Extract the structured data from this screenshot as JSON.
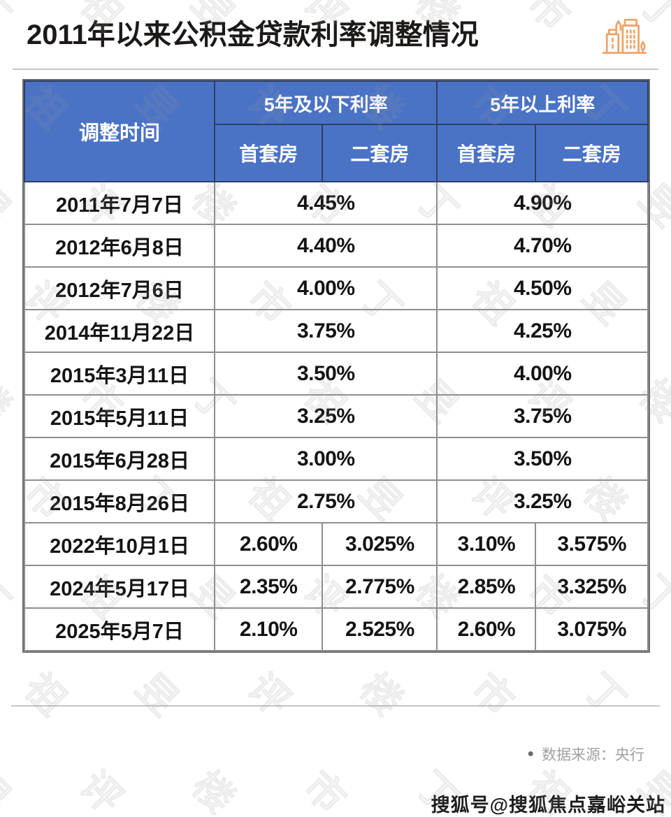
{
  "page": {
    "title": "2011年以来公积金贷款利率调整情况",
    "source_bullet": "●",
    "bottom_watermark": "搜狐号@搜狐焦点嘉峪关站",
    "bg_watermark_chars": [
      "丁",
      "祖",
      "昱",
      "评",
      "楼",
      "市"
    ]
  },
  "colors": {
    "header_blue": "#4a73c6",
    "header_border_navy": "#2e3f66",
    "body_border_gray": "#8f8f8f",
    "accent_orange": "#f0a168",
    "divider_gray": "#c6c6c6",
    "source_text_gray": "#a2a2a2"
  },
  "icons": {
    "building": "building-icon"
  },
  "chart_data": {
    "type": "table",
    "title": "2011年以来公积金贷款利率调整情况",
    "corner_header": "调整时间",
    "column_groups": [
      {
        "label": "5年及以下利率",
        "children": [
          "首套房",
          "二套房"
        ]
      },
      {
        "label": "5年以上利率",
        "children": [
          "首套房",
          "二套房"
        ]
      }
    ],
    "rows": [
      {
        "date": "2011年7月7日",
        "merged": true,
        "cells": [
          "4.45%",
          "4.90%"
        ]
      },
      {
        "date": "2012年6月8日",
        "merged": true,
        "cells": [
          "4.40%",
          "4.70%"
        ]
      },
      {
        "date": "2012年7月6日",
        "merged": true,
        "cells": [
          "4.00%",
          "4.50%"
        ]
      },
      {
        "date": "2014年11月22日",
        "merged": true,
        "cells": [
          "3.75%",
          "4.25%"
        ]
      },
      {
        "date": "2015年3月11日",
        "merged": true,
        "cells": [
          "3.50%",
          "4.00%"
        ]
      },
      {
        "date": "2015年5月11日",
        "merged": true,
        "cells": [
          "3.25%",
          "3.75%"
        ]
      },
      {
        "date": "2015年6月28日",
        "merged": true,
        "cells": [
          "3.00%",
          "3.50%"
        ]
      },
      {
        "date": "2015年8月26日",
        "merged": true,
        "cells": [
          "2.75%",
          "3.25%"
        ]
      },
      {
        "date": "2022年10月1日",
        "merged": false,
        "cells": [
          "2.60%",
          "3.025%",
          "3.10%",
          "3.575%"
        ]
      },
      {
        "date": "2024年5月17日",
        "merged": false,
        "cells": [
          "2.35%",
          "2.775%",
          "2.85%",
          "3.325%"
        ]
      },
      {
        "date": "2025年5月7日",
        "merged": false,
        "cells": [
          "2.10%",
          "2.525%",
          "2.60%",
          "3.075%"
        ]
      }
    ],
    "source": "数据来源：央行"
  }
}
